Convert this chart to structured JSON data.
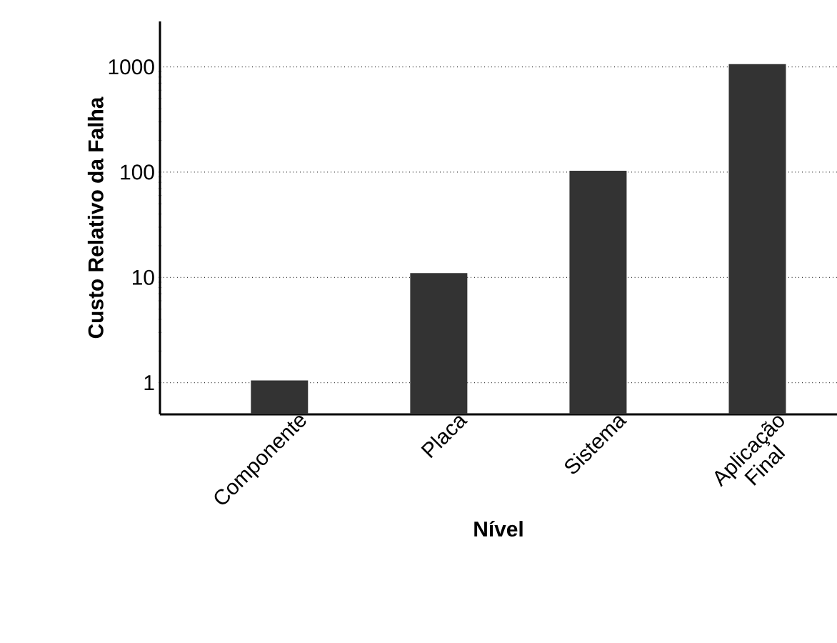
{
  "chart_data": {
    "type": "bar",
    "xlabel": "Nível",
    "ylabel": "Custo Relativo da Falha",
    "categories": [
      "Componente",
      "Placa",
      "Sistema",
      "Aplicação\nFinal"
    ],
    "values": [
      1.05,
      11,
      103,
      1060
    ],
    "color": "#333333",
    "log": true,
    "ylim": [
      0.5,
      2700
    ],
    "yticks": [
      1,
      10,
      100,
      1000
    ],
    "grid": "y"
  }
}
